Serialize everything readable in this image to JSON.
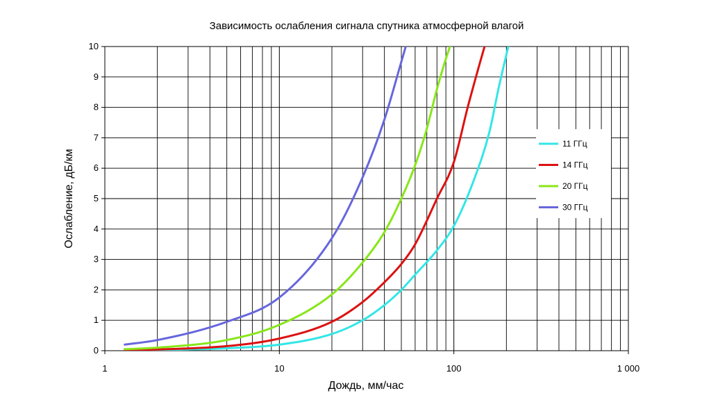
{
  "chart_data": {
    "type": "line",
    "title": "Зависимость ослабления сигнала спутника атмосферной влагой",
    "xlabel": "Дождь, мм/час",
    "ylabel": "Ослабление, дБ/км",
    "x_scale": "log",
    "xlim": [
      1,
      1000
    ],
    "ylim": [
      0,
      10
    ],
    "x_ticks": [
      1,
      10,
      100,
      1000
    ],
    "x_tick_labels": [
      "1",
      "10",
      "100",
      "1 000"
    ],
    "y_ticks": [
      0,
      1,
      2,
      3,
      4,
      5,
      6,
      7,
      8,
      9,
      10
    ],
    "y_tick_labels": [
      "0",
      "1",
      "2",
      "3",
      "4",
      "5",
      "6",
      "7",
      "8",
      "9",
      "10"
    ],
    "grid": true,
    "legend_position": "right",
    "series": [
      {
        "name": "11 ГГц",
        "color": "#33e6e6",
        "x": [
          1.3,
          2,
          5,
          10,
          20,
          30,
          40,
          50,
          60,
          80,
          100,
          130,
          160,
          180,
          205
        ],
        "y": [
          0.01,
          0.02,
          0.08,
          0.2,
          0.55,
          1.0,
          1.5,
          2.0,
          2.5,
          3.3,
          4.1,
          5.6,
          7.2,
          8.6,
          10.0
        ]
      },
      {
        "name": "14 ГГц",
        "color": "#dd1111",
        "x": [
          1.3,
          2,
          5,
          10,
          20,
          30,
          40,
          50,
          60,
          80,
          100,
          120,
          140,
          150
        ],
        "y": [
          0.02,
          0.04,
          0.15,
          0.4,
          0.95,
          1.6,
          2.25,
          2.85,
          3.5,
          5.0,
          6.2,
          8.0,
          9.4,
          10.0
        ]
      },
      {
        "name": "20 ГГц",
        "color": "#88e61a",
        "x": [
          1.3,
          2,
          5,
          10,
          20,
          30,
          40,
          50,
          60,
          70,
          80,
          90,
          95
        ],
        "y": [
          0.05,
          0.1,
          0.35,
          0.85,
          1.85,
          2.9,
          3.9,
          5.0,
          6.1,
          7.3,
          8.6,
          9.6,
          10.0
        ]
      },
      {
        "name": "30 ГГц",
        "color": "#6666dd",
        "x": [
          1.3,
          2,
          5,
          10,
          20,
          30,
          40,
          50,
          53
        ],
        "y": [
          0.2,
          0.35,
          0.95,
          1.75,
          3.7,
          5.7,
          7.6,
          9.5,
          10.0
        ]
      }
    ]
  }
}
